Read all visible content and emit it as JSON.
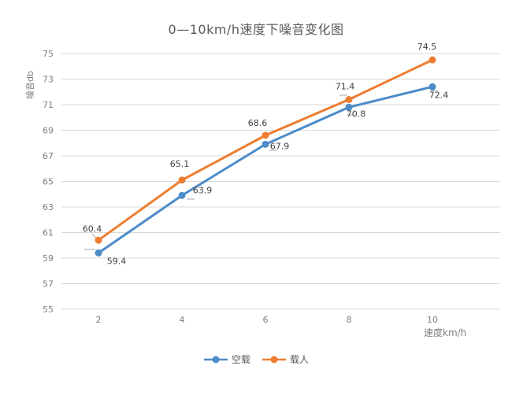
{
  "chart_data": {
    "type": "line",
    "title": "0—10km/h速度下噪音变化图",
    "xlabel": "速度km/h",
    "ylabel": "噪音db",
    "x": [
      2,
      4,
      6,
      8,
      10
    ],
    "series": [
      {
        "name": "空载",
        "color": "#4d8bc9",
        "values": [
          59.4,
          63.9,
          67.9,
          70.8,
          72.4
        ]
      },
      {
        "name": "载人",
        "color": "#ed7d31",
        "values": [
          60.4,
          65.1,
          68.6,
          71.4,
          74.5
        ]
      }
    ],
    "ylim": [
      55,
      75
    ],
    "yticks": [
      55,
      57,
      59,
      61,
      63,
      65,
      67,
      69,
      71,
      73,
      75
    ],
    "grid": "horizontal",
    "legend_position": "bottom",
    "data_labels": true
  },
  "colors": {
    "gridline": "#d9d9d9",
    "tick_label": "#7f7f7f",
    "title": "#595959",
    "data_label": "#404040",
    "leader": "#a6a6a6"
  }
}
